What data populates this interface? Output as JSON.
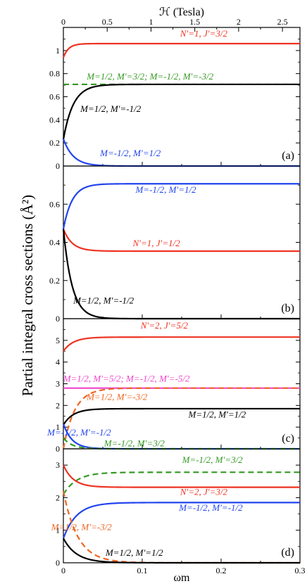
{
  "figure": {
    "ylabel": "Partial integral cross sections (Å²)",
    "top_xlabel": "ℋ (Tesla)",
    "bottom_xlabel": "ωm"
  },
  "chart_data": [
    {
      "type": "line",
      "panel": "(a)",
      "xlim": [
        0,
        0.3
      ],
      "ylim": [
        0,
        1.2
      ],
      "yticks": [
        0,
        0.2,
        0.4,
        0.6,
        0.8,
        1
      ],
      "top_axis": {
        "label": "ℋ (Tesla)",
        "ticks": [
          0,
          0.5,
          1,
          1.5,
          2,
          2.5
        ],
        "range": [
          0,
          2.7
        ]
      },
      "series": [
        {
          "label": "N′=1, J′=3/2",
          "color": "#ee3322",
          "dash": false,
          "start": 0.94,
          "end": 1.06,
          "rate": 150,
          "label_x": 0.178,
          "label_y": 1.12
        },
        {
          "label": "M=1/2, M′=3/2;   M=-1/2, M′=-3/2",
          "color": "#339922",
          "dash": true,
          "start": 0.707,
          "end": 0.707,
          "rate": 100,
          "label_x": 0.11,
          "label_y": 0.75
        },
        {
          "label": "M=1/2, M′=-1/2",
          "color": "#000000",
          "dash": false,
          "start": 0.23,
          "end": 0.707,
          "rate": 80,
          "label_x": 0.06,
          "label_y": 0.47
        },
        {
          "label": "M=-1/2, M′=1/2",
          "color": "#2244ee",
          "dash": false,
          "start": 0.235,
          "end": 0.0,
          "rate": 80,
          "label_x": 0.085,
          "label_y": 0.085
        }
      ]
    },
    {
      "type": "line",
      "panel": "(b)",
      "xlim": [
        0,
        0.3
      ],
      "ylim": [
        0,
        0.8
      ],
      "yticks": [
        0,
        0.2,
        0.4,
        0.6
      ],
      "series": [
        {
          "label": "M=-1/2, M′=1/2",
          "color": "#2244ee",
          "dash": false,
          "start": 0.47,
          "end": 0.707,
          "rate": 90,
          "label_x": 0.13,
          "label_y": 0.66
        },
        {
          "label": "N′=1, J′=1/2",
          "color": "#ee3322",
          "dash": false,
          "start": 0.47,
          "end": 0.354,
          "rate": 90,
          "label_x": 0.118,
          "label_y": 0.38
        },
        {
          "label": "M=1/2, M′=-1/2",
          "color": "#000000",
          "dash": false,
          "start": 0.47,
          "end": 0.0,
          "rate": 90,
          "label_x": 0.051,
          "label_y": 0.08
        }
      ]
    },
    {
      "type": "line",
      "panel": "(c)",
      "xlim": [
        0,
        0.3
      ],
      "ylim": [
        0,
        6
      ],
      "yticks": [
        0,
        1,
        2,
        3,
        4,
        5
      ],
      "series": [
        {
          "label": "N′=2, J′=5/2",
          "color": "#ee3322",
          "dash": false,
          "start": 4.5,
          "end": 5.15,
          "rate": 80,
          "label_x": 0.128,
          "label_y": 5.55
        },
        {
          "label": "M=1/2, M′=5/2;   M=-1/2, M′=-5/2",
          "color": "#ee44cc",
          "dash": false,
          "start": 2.8,
          "end": 2.8,
          "rate": 80,
          "label_x": 0.08,
          "label_y": 3.1
        },
        {
          "label": "M=1/2, M′=-3/2",
          "color": "#ee6622",
          "dash": true,
          "start": 0.0,
          "end": 2.8,
          "rate": 70,
          "label_x": 0.068,
          "label_y": 2.25
        },
        {
          "label": "M=1/2, M′=1/2",
          "color": "#000000",
          "dash": false,
          "start": 1.1,
          "end": 1.85,
          "rate": 80,
          "label_x": 0.195,
          "label_y": 1.45
        },
        {
          "label": "M=-1/2, M′=-1/2",
          "color": "#2244ee",
          "dash": false,
          "start": 1.15,
          "end": 0.0,
          "rate": 90,
          "label_x": 0.02,
          "label_y": 0.62
        },
        {
          "label": "M=-1/2, M′=3/2",
          "color": "#339922",
          "dash": true,
          "start": 0.5,
          "end": 0.0,
          "rate": 90,
          "label_x": 0.09,
          "label_y": 0.12
        }
      ]
    },
    {
      "type": "line",
      "panel": "(d)",
      "xlim": [
        0,
        0.3
      ],
      "ylim": [
        0,
        3.5
      ],
      "yticks": [
        0,
        1,
        2,
        3
      ],
      "series": [
        {
          "label": "M=-1/2, M′=3/2",
          "color": "#339922",
          "dash": true,
          "start": 2.1,
          "end": 2.78,
          "rate": 60,
          "label_x": 0.189,
          "label_y": 3.07
        },
        {
          "label": "N′=2, J′=3/2",
          "color": "#ee3322",
          "dash": false,
          "start": 3.0,
          "end": 2.32,
          "rate": 80,
          "label_x": 0.178,
          "label_y": 2.08
        },
        {
          "label": "M=-1/2, M′=-1/2",
          "color": "#2244ee",
          "dash": false,
          "start": 0.75,
          "end": 1.85,
          "rate": 60,
          "label_x": 0.187,
          "label_y": 1.6
        },
        {
          "label": "M=1/2, M′=-3/2",
          "color": "#ee6622",
          "dash": true,
          "start": 2.2,
          "end": 0.0,
          "rate": 55,
          "label_x": 0.023,
          "label_y": 1.0
        },
        {
          "label": "M=1/2, M′=1/2",
          "color": "#000000",
          "dash": false,
          "start": 0.75,
          "end": 0.0,
          "rate": 60,
          "label_x": 0.09,
          "label_y": 0.22
        }
      ],
      "xticks": [
        0,
        0.1,
        0.2,
        0.3
      ],
      "xlabel": "ωm"
    }
  ]
}
